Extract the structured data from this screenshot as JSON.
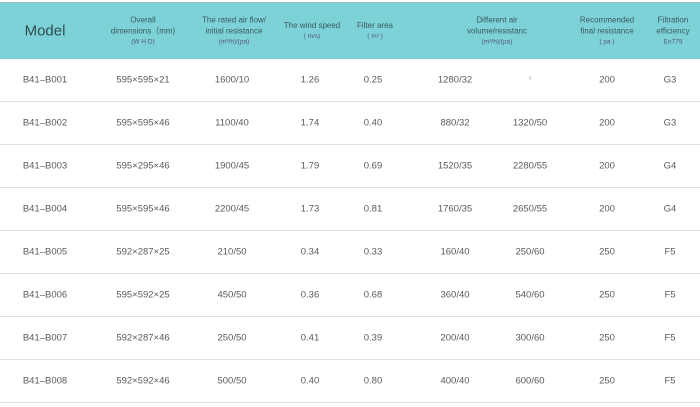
{
  "header": {
    "model": "Model",
    "dims": [
      "Overall",
      "dimensions（mm)",
      "(W H D)"
    ],
    "flow": [
      "The rated air flow/",
      "initial resistance",
      "(m³/h)/(pa)"
    ],
    "speed": [
      "The wind speed",
      "( m/s)"
    ],
    "area": [
      "Filter area",
      "( m² )"
    ],
    "diff": [
      "Different air",
      "volume/resistanc",
      "(m³/h)/(pa)"
    ],
    "rec": [
      "Recommended",
      "final resistance",
      "( pa )"
    ],
    "eff": [
      "Filtration",
      "efficiency",
      "En779"
    ]
  },
  "rows": [
    [
      "B41–B001",
      "595×595×21",
      "1600/10",
      "1.26",
      "0.25",
      "1280/32",
      "¹",
      "200",
      "G3"
    ],
    [
      "B41–B002",
      "595×595×46",
      "1100/40",
      "1.74",
      "0.40",
      "880/32",
      "1320/50",
      "200",
      "G3"
    ],
    [
      "B41–B003",
      "595×295×46",
      "1900/45",
      "1.79",
      "0.69",
      "1520/35",
      "2280/55",
      "200",
      "G4"
    ],
    [
      "B41–B004",
      "595×595×46",
      "2200/45",
      "1.73",
      "0.81",
      "1760/35",
      "2650/55",
      "200",
      "G4"
    ],
    [
      "B41–B005",
      "592×287×25",
      "210/50",
      "0.34",
      "0.33",
      "160/40",
      "250/60",
      "250",
      "F5"
    ],
    [
      "B41–B006",
      "595×592×25",
      "450/50",
      "0.36",
      "0.68",
      "360/40",
      "540/60",
      "250",
      "F5"
    ],
    [
      "B41–B007",
      "592×287×46",
      "250/50",
      "0.41",
      "0.39",
      "200/40",
      "300/60",
      "250",
      "F5"
    ],
    [
      "B41–B008",
      "592×592×46",
      "500/50",
      "0.40",
      "0.80",
      "400/40",
      "600/60",
      "250",
      "F5"
    ]
  ],
  "colors": {
    "header_bg": "#7dd2d7"
  }
}
